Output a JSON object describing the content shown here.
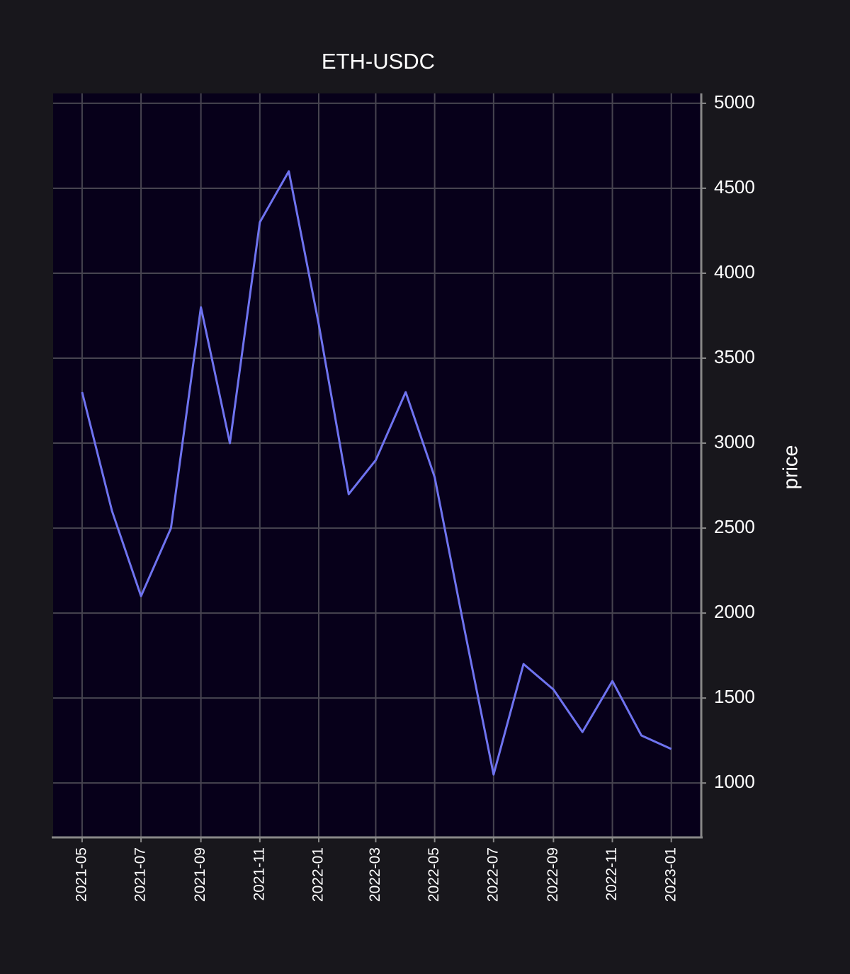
{
  "chart_data": {
    "type": "line",
    "title": "ETH-USDC",
    "y_label": "price",
    "x": [
      "2021-05",
      "2021-06",
      "2021-07",
      "2021-08",
      "2021-09",
      "2021-10",
      "2021-11",
      "2021-12",
      "2022-01",
      "2022-02",
      "2022-03",
      "2022-04",
      "2022-05",
      "2022-06",
      "2022-07",
      "2022-08",
      "2022-09",
      "2022-10",
      "2022-11",
      "2022-12",
      "2023-01"
    ],
    "series": [
      {
        "name": "price",
        "color": "#6f73f0",
        "values": [
          3300,
          2600,
          2100,
          2500,
          3800,
          3000,
          4300,
          4600,
          3700,
          2700,
          2900,
          3300,
          2800,
          1900,
          1050,
          1700,
          1550,
          1300,
          1600,
          1280,
          1200
        ]
      }
    ],
    "xlim": [
      "2021-04",
      "2023-02"
    ],
    "xticks": [
      "2021-05",
      "2021-07",
      "2021-09",
      "2021-11",
      "2022-01",
      "2022-03",
      "2022-05",
      "2022-07",
      "2022-09",
      "2022-11",
      "2023-01"
    ],
    "ylim": [
      680,
      5058
    ],
    "yticks": [
      1000,
      1500,
      2000,
      2500,
      3000,
      3500,
      4000,
      4500,
      5000
    ],
    "grid": true,
    "y_axis_side": "right"
  }
}
